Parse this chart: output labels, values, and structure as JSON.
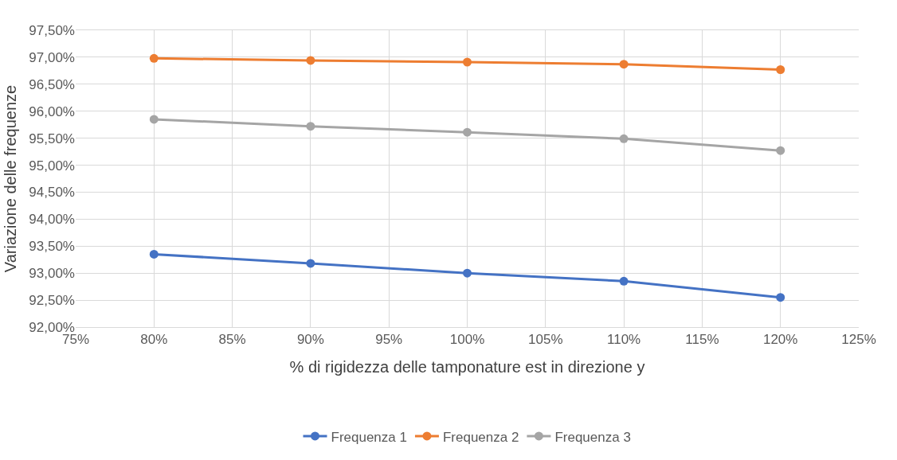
{
  "chart_data": {
    "type": "line",
    "xlabel": "% di rigidezza delle tamponature est in direzione y",
    "ylabel": "Variazione delle frequenze",
    "x": [
      80,
      90,
      100,
      110,
      120
    ],
    "series": [
      {
        "name": "Frequenza 1",
        "color": "#4472c4",
        "values": [
          93.35,
          93.18,
          93.0,
          92.85,
          92.55
        ]
      },
      {
        "name": "Frequenza 2",
        "color": "#ed7d31",
        "values": [
          96.98,
          96.94,
          96.91,
          96.87,
          96.77
        ]
      },
      {
        "name": "Frequenza 3",
        "color": "#a5a5a5",
        "values": [
          95.85,
          95.72,
          95.61,
          95.49,
          95.27
        ]
      }
    ],
    "xlim": [
      75,
      125
    ],
    "xticks": [
      {
        "value": 75,
        "label": "75%"
      },
      {
        "value": 80,
        "label": "80%"
      },
      {
        "value": 85,
        "label": "85%"
      },
      {
        "value": 90,
        "label": "90%"
      },
      {
        "value": 95,
        "label": "95%"
      },
      {
        "value": 100,
        "label": "100%"
      },
      {
        "value": 105,
        "label": "105%"
      },
      {
        "value": 110,
        "label": "110%"
      },
      {
        "value": 115,
        "label": "115%"
      },
      {
        "value": 120,
        "label": "120%"
      },
      {
        "value": 125,
        "label": "125%"
      }
    ],
    "ylim": [
      92,
      97.5
    ],
    "yticks": [
      {
        "value": 92,
        "label": "92,00%"
      },
      {
        "value": 92.5,
        "label": "92,50%"
      },
      {
        "value": 93,
        "label": "93,00%"
      },
      {
        "value": 93.5,
        "label": "93,50%"
      },
      {
        "value": 94,
        "label": "94,00%"
      },
      {
        "value": 94.5,
        "label": "94,50%"
      },
      {
        "value": 95,
        "label": "95,00%"
      },
      {
        "value": 95.5,
        "label": "95,50%"
      },
      {
        "value": 96,
        "label": "96,00%"
      },
      {
        "value": 96.5,
        "label": "96,50%"
      },
      {
        "value": 97,
        "label": "97,00%"
      },
      {
        "value": 97.5,
        "label": "97,50%"
      }
    ],
    "grid": true,
    "legend": "bottom",
    "marker": "circle",
    "line_style": "solid"
  }
}
